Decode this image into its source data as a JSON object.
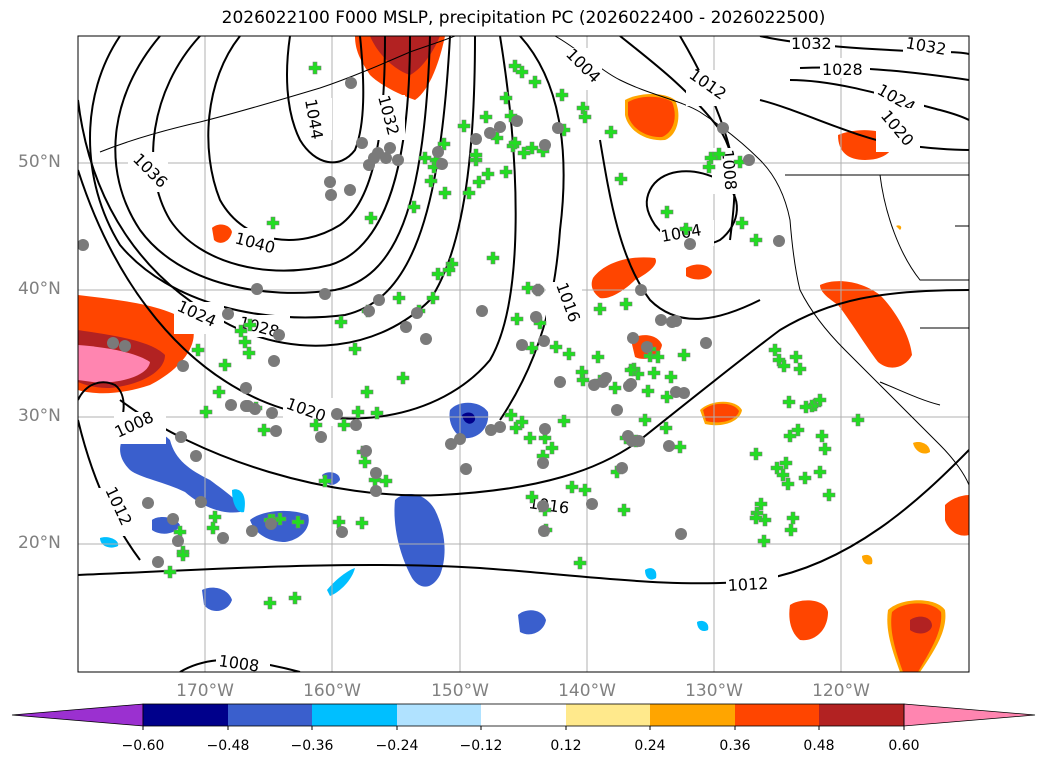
{
  "title": "2026022100 F000 MSLP, precipitation PC (2026022400 - 2026022500)",
  "map": {
    "lat_labels": [
      {
        "text": "50°N",
        "lat": 50
      },
      {
        "text": "40°N",
        "lat": 40
      },
      {
        "text": "30°N",
        "lat": 30
      },
      {
        "text": "20°N",
        "lat": 20
      }
    ],
    "lon_labels": [
      {
        "text": "170°W",
        "lon": -170
      },
      {
        "text": "160°W",
        "lon": -160
      },
      {
        "text": "150°W",
        "lon": -150
      },
      {
        "text": "140°W",
        "lon": -140
      },
      {
        "text": "130°W",
        "lon": -130
      },
      {
        "text": "120°W",
        "lon": -120
      }
    ],
    "gridlines": true,
    "isobar_labels": [
      "1044",
      "1040",
      "1036",
      "1032",
      "1028",
      "1024",
      "1020",
      "1016",
      "1012",
      "1008",
      "1004"
    ],
    "colors": {
      "isobar": "#000000",
      "grid": "#b0b0b0",
      "station_marker": "#22dd22",
      "station_ring": "#7a7a7a"
    }
  },
  "colorbar": {
    "ticks": [
      "−0.60",
      "−0.48",
      "−0.36",
      "−0.24",
      "−0.12",
      "0.12",
      "0.24",
      "0.36",
      "0.48",
      "0.60"
    ],
    "colors": [
      "#9b30d0",
      "#00008b",
      "#3a5fcd",
      "#00bfff",
      "#b0e2ff",
      "#ffffff",
      "#ffe98c",
      "#ffa500",
      "#ff4500",
      "#b22222",
      "#ff85b0"
    ]
  }
}
